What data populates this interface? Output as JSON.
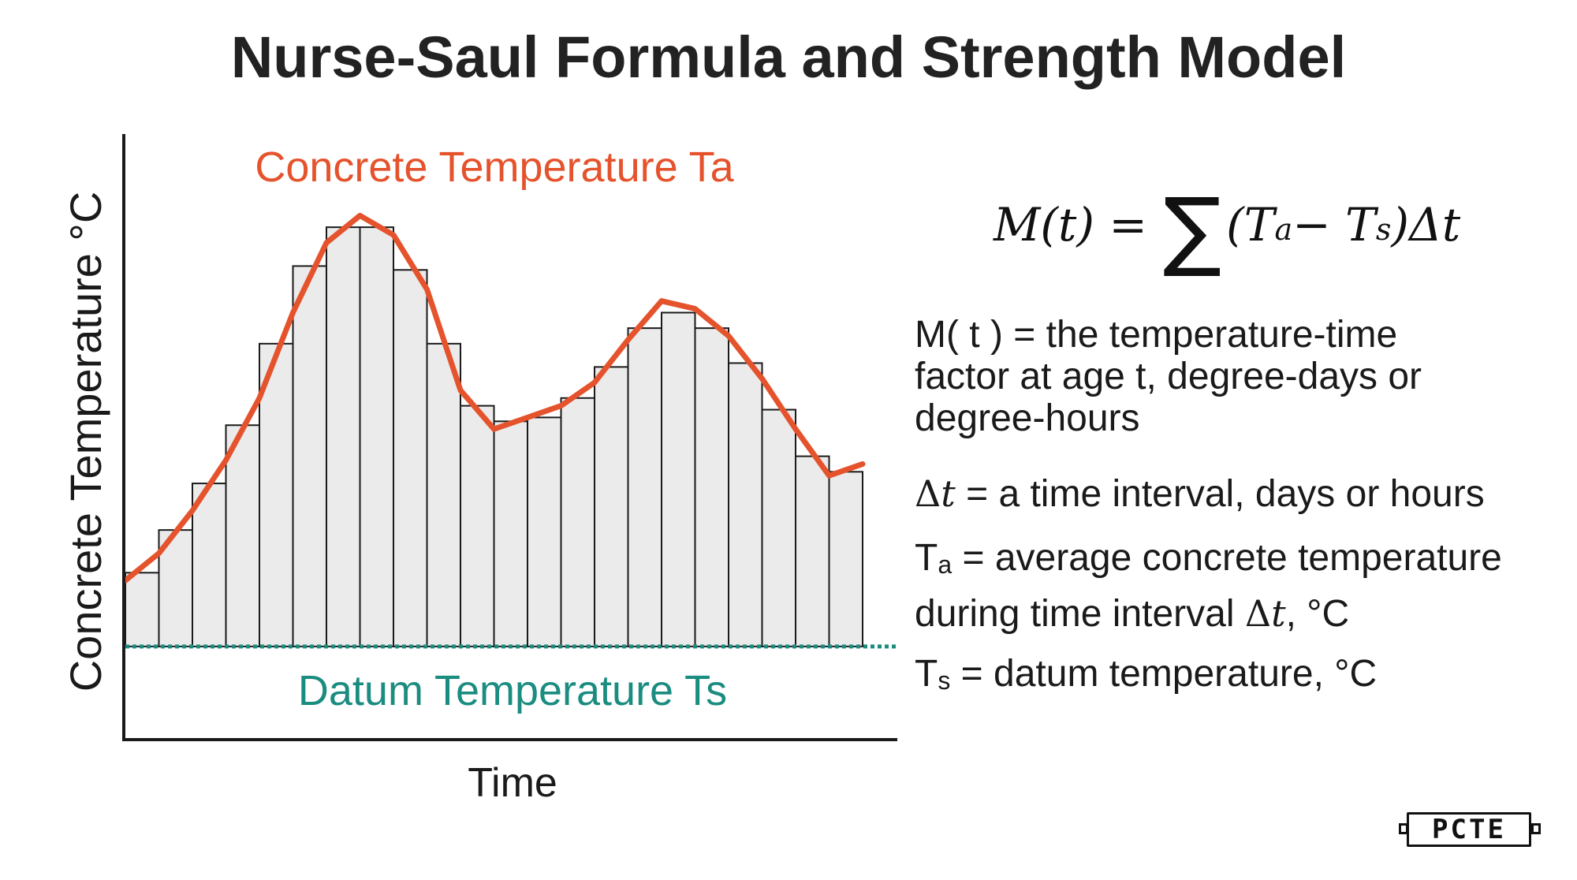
{
  "title": "Nurse-Saul Formula and Strength Model",
  "colors": {
    "temperature_line": "#E5532D",
    "datum_line": "#1A8C80",
    "bar_fill": "#EBEBEB",
    "bar_stroke": "#1A1A1A",
    "axis": "#1A1A1A"
  },
  "chart_data": {
    "type": "bar",
    "ylabel": "Concrete Temperature °C",
    "xlabel": "Time",
    "series": [
      {
        "name": "Concrete Temperature Ta",
        "kind": "line"
      },
      {
        "name": "Datum Temperature Ts",
        "kind": "dashed-line"
      }
    ],
    "bars": [
      9.5,
      15,
      21,
      28.5,
      39,
      49,
      54,
      54,
      48.5,
      39,
      31,
      29,
      29.5,
      32,
      36,
      41,
      43,
      41,
      36.5,
      30.5,
      24.5,
      22.5
    ],
    "temperature_line": [
      8.5,
      12,
      17.5,
      24,
      32,
      43,
      52,
      55.5,
      53,
      46,
      33,
      28,
      29.5,
      31,
      34,
      39.5,
      44.5,
      43.5,
      40,
      34.5,
      28,
      22,
      23.5
    ],
    "datum": 0,
    "ylim": [
      -12,
      66
    ],
    "grid": false
  },
  "formula": {
    "lhs": "M(t) =",
    "sigma": "∑",
    "rhs_open": "(T",
    "sub_a": "a",
    "minus": " − T",
    "sub_s": "s",
    "rhs_close": ")Δt"
  },
  "definitions": {
    "m_line1": "M( t ) = the temperature-time",
    "m_line2": "factor at age t, degree-days or",
    "m_line3": "degree-hours",
    "dt_symbol": "Δ",
    "dt_t": "t",
    "dt_text": " = a time interval, days or hours",
    "ta_T": "T",
    "ta_sub": "a",
    "ta_line1": " = average concrete temperature",
    "ta_line2_pre": "during time interval ",
    "ta_line2_sym": "Δ",
    "ta_line2_t": "t",
    "ta_line2_post": ", °C",
    "ts_T": "T",
    "ts_sub": "s",
    "ts_text": " = datum temperature, °C"
  },
  "logo": {
    "text": "PCTE"
  }
}
